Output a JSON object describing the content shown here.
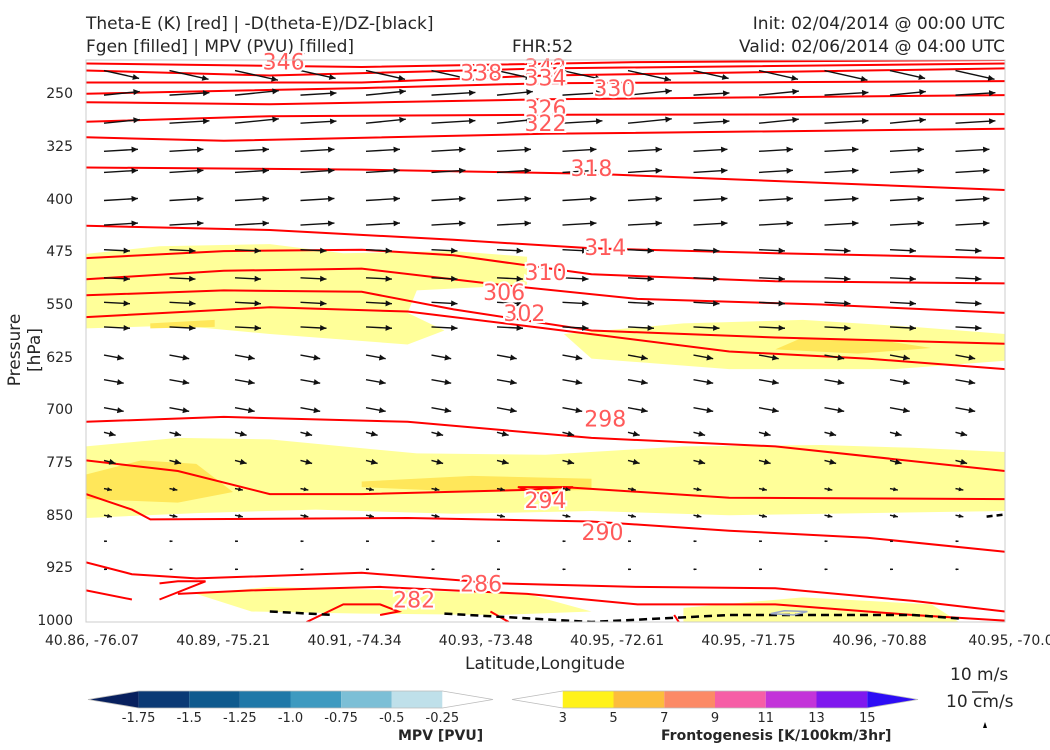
{
  "header": {
    "left_line1": "Theta-E (K) [red] | -D(theta-E)/DZ-[black]",
    "left_line2": "Fgen [filled] | MPV (PVU) [filled]",
    "center": "FHR:52",
    "right_line1": "Init: 02/04/2014 @ 00:00 UTC",
    "right_line2": "Valid: 02/06/2014 @ 04:00 UTC"
  },
  "chart_data": {
    "type": "cross-section",
    "xlabel": "Latitude,Longitude",
    "ylabel": "Pressure [hPa]",
    "x_ticks": [
      "40.86, -76.07",
      "40.89, -75.21",
      "40.91, -74.34",
      "40.93, -73.48",
      "40.95, -72.61",
      "40.95, -71.75",
      "40.96, -70.88",
      "40.95, -70.0"
    ],
    "y_ticks": [
      250,
      325,
      400,
      475,
      550,
      625,
      700,
      775,
      850,
      925,
      1000
    ],
    "y_range": [
      200,
      1000
    ],
    "theta_e_contour_labels": [
      346,
      342,
      338,
      334,
      330,
      326,
      322,
      318,
      314,
      310,
      306,
      302,
      298,
      294,
      290,
      286,
      282
    ],
    "wind_quiver_key": [
      "10 m/s",
      "10 cm/s"
    ],
    "colors": {
      "theta_e": "#ff0000",
      "theta_e_label": "#ff5a5a",
      "fgen_light": "#ffff99",
      "fgen_mid": "#ffe75a",
      "wind": "#111111"
    }
  },
  "mpv_colorbar": {
    "label": "MPV [PVU]",
    "ticks": [
      "-1.75",
      "-1.5",
      "-1.25",
      "-1.0",
      "-0.75",
      "-0.5",
      "-0.25"
    ],
    "colors": [
      "#08205e",
      "#0b3a75",
      "#0f5a8e",
      "#1f78a8",
      "#3e9ac0",
      "#7cbfd6",
      "#bfe0ea",
      "#ffffff"
    ]
  },
  "fgen_colorbar": {
    "label": "Frontogenesis [K/100km/3hr]",
    "ticks": [
      "3",
      "5",
      "7",
      "9",
      "11",
      "13",
      "15"
    ],
    "colors": [
      "#ffffff",
      "#fff21a",
      "#fcbd3c",
      "#fc8a66",
      "#f65ea6",
      "#c334d9",
      "#7f18ee",
      "#2d0df5"
    ]
  }
}
